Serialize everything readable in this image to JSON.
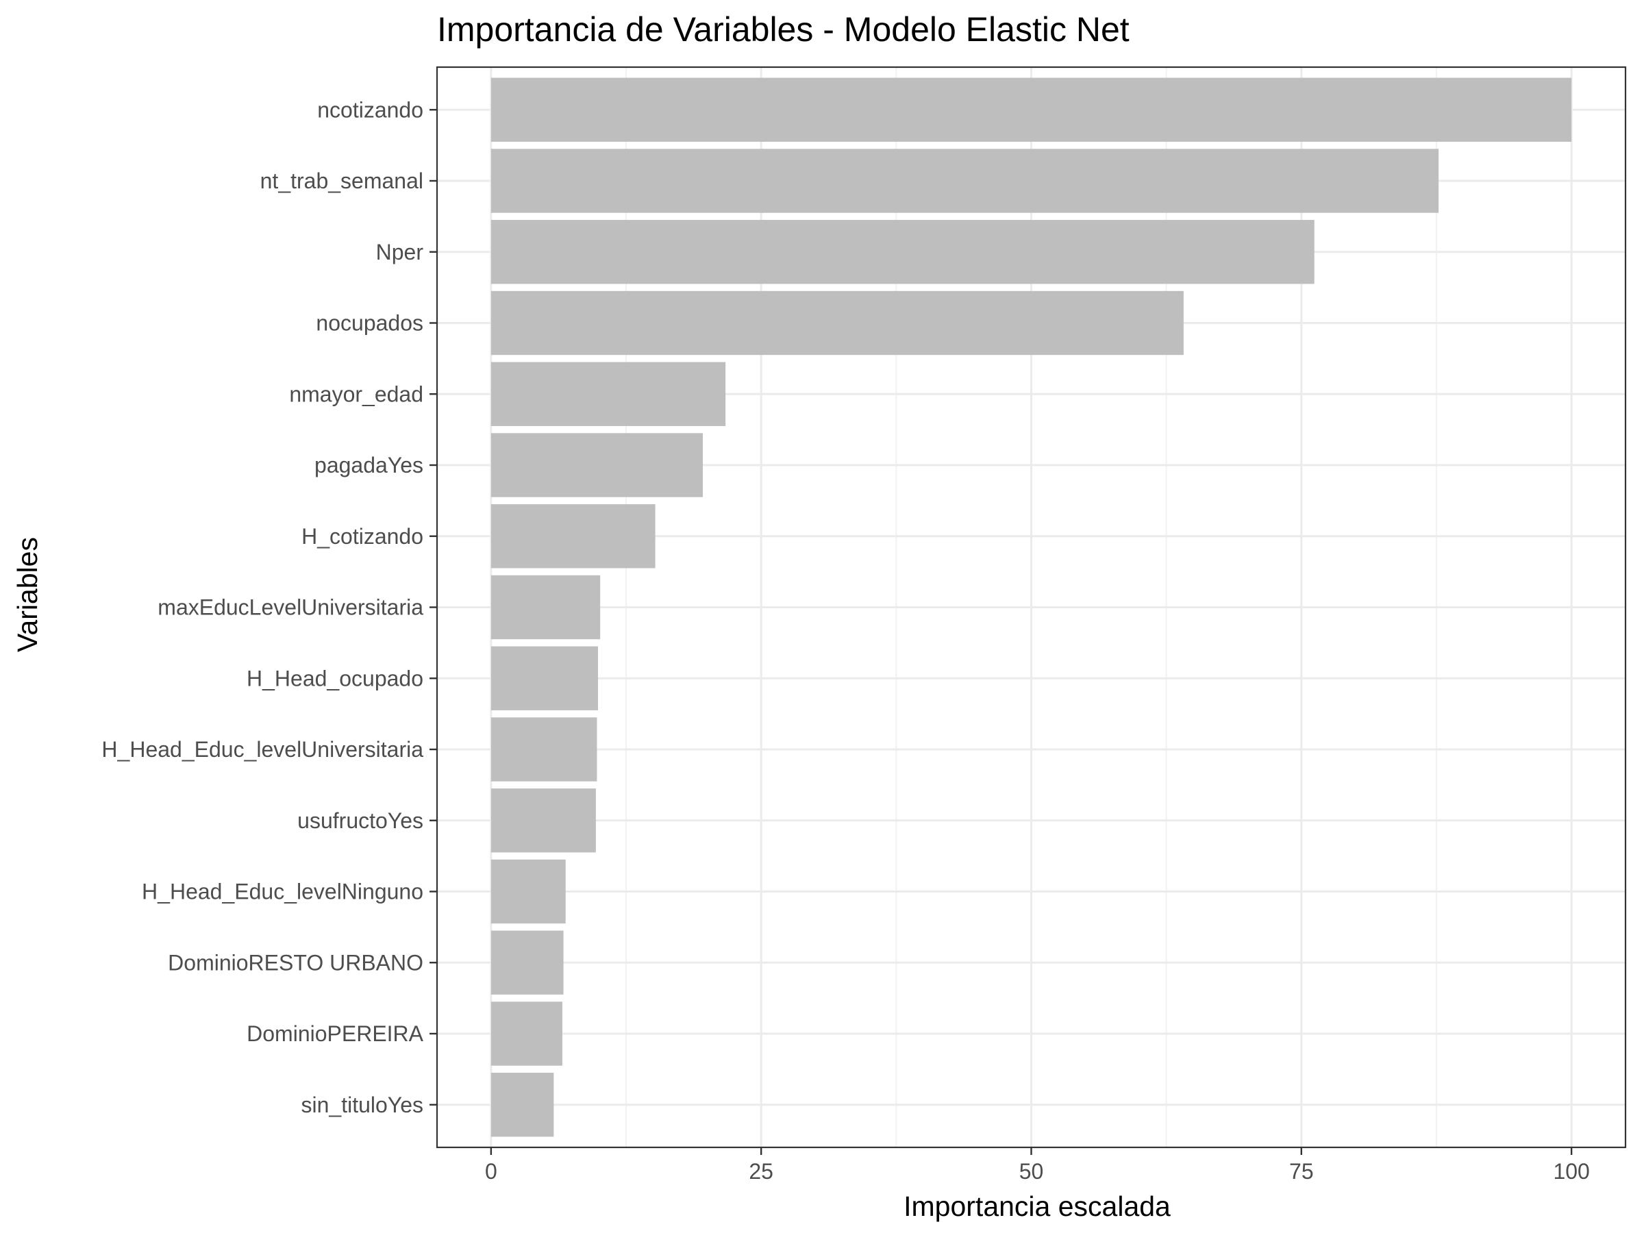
{
  "chart_data": {
    "type": "bar",
    "orientation": "horizontal",
    "title": "Importancia de Variables - Modelo Elastic Net",
    "xlabel": "Importancia escalada",
    "ylabel": "Variables",
    "categories": [
      "ncotizando",
      "nt_trab_semanal",
      "Nper",
      "nocupados",
      "nmayor_edad",
      "pagadaYes",
      "H_cotizando",
      "maxEducLevelUniversitaria",
      "H_Head_ocupado",
      "H_Head_Educ_levelUniversitaria",
      "usufructoYes",
      "H_Head_Educ_levelNinguno",
      "DominioRESTO URBANO",
      "DominioPEREIRA",
      "sin_tituloYes"
    ],
    "values": [
      100,
      87.7,
      76.2,
      64.1,
      21.7,
      19.6,
      15.2,
      10.1,
      9.9,
      9.8,
      9.7,
      6.9,
      6.7,
      6.6,
      5.8
    ],
    "xlim": [
      -5,
      105
    ],
    "xticks": [
      0,
      25,
      50,
      75,
      100
    ],
    "grid": true,
    "colors": {
      "bar": "#bebebe",
      "panel_border": "#333333",
      "grid": "#ebebeb"
    }
  }
}
